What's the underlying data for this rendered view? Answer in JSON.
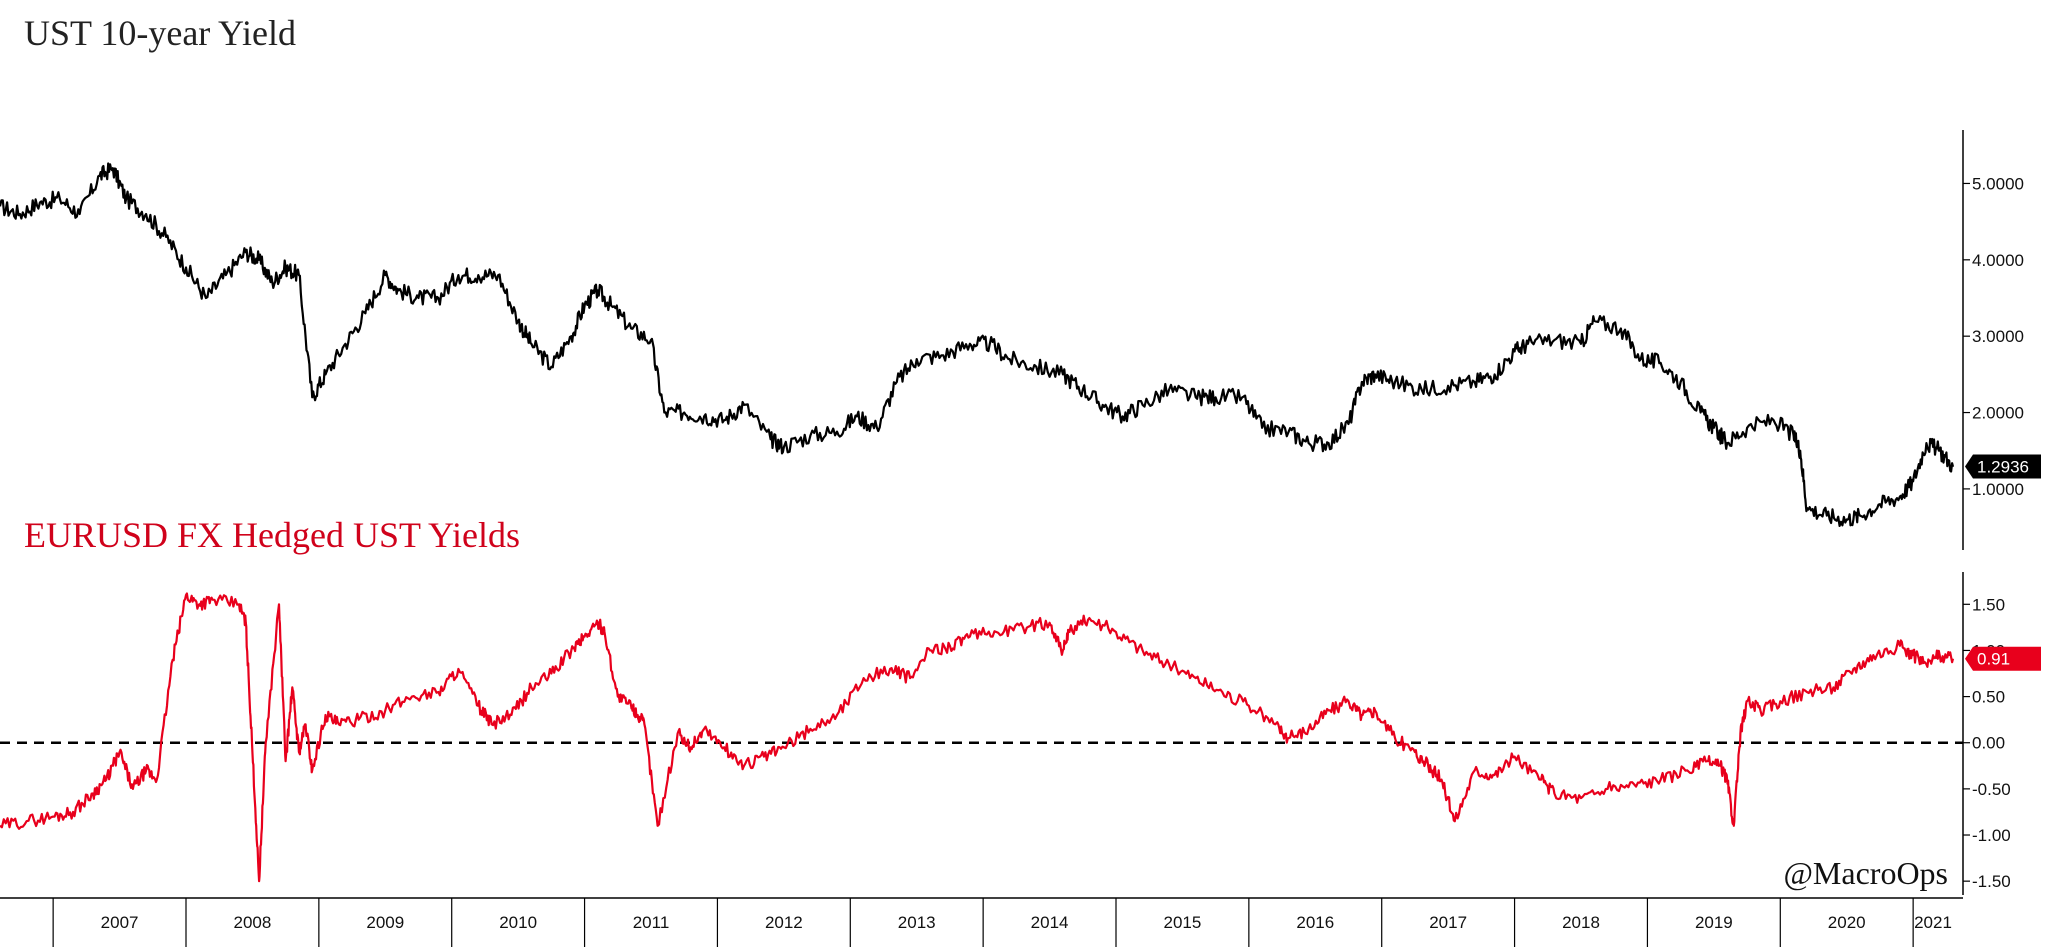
{
  "titles": {
    "top": "UST 10-year Yield",
    "bottom": "EURUSD FX Hedged UST Yields"
  },
  "watermark": "@MacroOps",
  "colors": {
    "top_line": "#000000",
    "bottom_line": "#e8001c",
    "zero_line": "#000000"
  },
  "chart_data": [
    {
      "type": "line",
      "title": "UST 10-year Yield",
      "x_unit": "year",
      "xlim": [
        2006.6,
        2021.3
      ],
      "ylim": [
        0.2,
        5.7
      ],
      "yticks": [
        "5.0000",
        "4.0000",
        "3.0000",
        "2.0000",
        "1.0000"
      ],
      "ytick_values": [
        5.0,
        4.0,
        3.0,
        2.0,
        1.0
      ],
      "last_value_label": "1.2936",
      "last_value": 1.2936,
      "series": [
        {
          "x": [
            2006.6,
            2006.75,
            2006.9,
            2007.05,
            2007.2,
            2007.35,
            2007.45,
            2007.55,
            2007.7,
            2007.85,
            2008.0,
            2008.15,
            2008.3,
            2008.45,
            2008.55,
            2008.65,
            2008.75,
            2008.85,
            2008.95,
            2009.05,
            2009.2,
            2009.35,
            2009.5,
            2009.6,
            2009.75,
            2009.9,
            2010.05,
            2010.2,
            2010.35,
            2010.5,
            2010.6,
            2010.75,
            2010.9,
            2011.0,
            2011.1,
            2011.2,
            2011.35,
            2011.5,
            2011.6,
            2011.75,
            2011.9,
            2012.05,
            2012.2,
            2012.4,
            2012.5,
            2012.7,
            2012.9,
            2013.05,
            2013.2,
            2013.35,
            2013.5,
            2013.7,
            2013.9,
            2014.05,
            2014.2,
            2014.4,
            2014.6,
            2014.75,
            2014.9,
            2015.05,
            2015.2,
            2015.4,
            2015.6,
            2015.75,
            2015.95,
            2016.1,
            2016.3,
            2016.45,
            2016.6,
            2016.75,
            2016.85,
            2016.95,
            2017.1,
            2017.3,
            2017.5,
            2017.7,
            2017.85,
            2018.0,
            2018.1,
            2018.3,
            2018.5,
            2018.6,
            2018.8,
            2018.95,
            2019.1,
            2019.25,
            2019.4,
            2019.5,
            2019.6,
            2019.75,
            2019.95,
            2020.1,
            2020.15,
            2020.2,
            2020.35,
            2020.5,
            2020.6,
            2020.75,
            2020.9,
            2021.0,
            2021.1,
            2021.2,
            2021.3
          ],
          "y": [
            4.7,
            4.6,
            4.75,
            4.8,
            4.6,
            5.1,
            5.2,
            4.8,
            4.6,
            4.3,
            3.9,
            3.5,
            3.8,
            4.1,
            4.0,
            3.7,
            3.9,
            3.8,
            2.2,
            2.5,
            2.9,
            3.3,
            3.8,
            3.6,
            3.5,
            3.5,
            3.8,
            3.8,
            3.8,
            3.2,
            2.9,
            2.6,
            3.0,
            3.4,
            3.6,
            3.4,
            3.1,
            2.95,
            2.0,
            2.0,
            1.95,
            1.9,
            2.1,
            1.65,
            1.55,
            1.7,
            1.75,
            1.95,
            1.8,
            2.4,
            2.7,
            2.75,
            2.9,
            2.9,
            2.7,
            2.6,
            2.5,
            2.3,
            2.1,
            1.95,
            2.1,
            2.3,
            2.2,
            2.2,
            2.2,
            1.8,
            1.75,
            1.6,
            1.6,
            1.85,
            2.4,
            2.5,
            2.4,
            2.3,
            2.35,
            2.4,
            2.5,
            2.8,
            2.9,
            2.95,
            2.9,
            3.2,
            3.1,
            2.7,
            2.65,
            2.4,
            2.0,
            1.8,
            1.6,
            1.8,
            1.9,
            1.7,
            1.5,
            0.75,
            0.65,
            0.6,
            0.65,
            0.8,
            0.9,
            1.1,
            1.6,
            1.5,
            1.29
          ]
        }
      ]
    },
    {
      "type": "line",
      "title": "EURUSD FX Hedged UST Yields",
      "x_unit": "year",
      "xlim": [
        2006.6,
        2021.3
      ],
      "ylim": [
        -1.65,
        1.85
      ],
      "xticks": [
        "2007",
        "2008",
        "2009",
        "2010",
        "2011",
        "2012",
        "2013",
        "2014",
        "2015",
        "2016",
        "2017",
        "2018",
        "2019",
        "2020",
        "2021"
      ],
      "yticks": [
        "1.50",
        "1.00",
        "0.50",
        "0.00",
        "-0.50",
        "-1.00",
        "-1.50"
      ],
      "ytick_values": [
        1.5,
        1.0,
        0.5,
        0.0,
        -0.5,
        -1.0,
        -1.5
      ],
      "reference_line": 0.0,
      "last_value_label": "0.91",
      "last_value": 0.91,
      "series": [
        {
          "x": [
            2006.6,
            2006.8,
            2007.0,
            2007.15,
            2007.3,
            2007.4,
            2007.5,
            2007.6,
            2007.7,
            2007.78,
            2007.9,
            2008.0,
            2008.1,
            2008.2,
            2008.4,
            2008.45,
            2008.5,
            2008.55,
            2008.6,
            2008.7,
            2008.75,
            2008.8,
            2008.85,
            2008.9,
            2008.95,
            2009.05,
            2009.15,
            2009.3,
            2009.5,
            2009.7,
            2009.9,
            2010.05,
            2010.2,
            2010.3,
            2010.45,
            2010.6,
            2010.75,
            2010.9,
            2011.0,
            2011.1,
            2011.15,
            2011.25,
            2011.35,
            2011.4,
            2011.45,
            2011.55,
            2011.7,
            2011.8,
            2011.9,
            2012.05,
            2012.2,
            2012.35,
            2012.5,
            2012.7,
            2012.9,
            2013.1,
            2013.3,
            2013.45,
            2013.6,
            2013.75,
            2013.9,
            2014.1,
            2014.3,
            2014.5,
            2014.6,
            2014.65,
            2014.8,
            2015.0,
            2015.2,
            2015.4,
            2015.6,
            2015.8,
            2016.0,
            2016.2,
            2016.3,
            2016.45,
            2016.6,
            2016.75,
            2016.85,
            2016.95,
            2017.1,
            2017.25,
            2017.35,
            2017.45,
            2017.55,
            2017.7,
            2017.85,
            2018.0,
            2018.2,
            2018.3,
            2018.5,
            2018.7,
            2018.9,
            2019.1,
            2019.3,
            2019.45,
            2019.55,
            2019.6,
            2019.65,
            2019.7,
            2019.75,
            2019.85,
            2020.0,
            2020.2,
            2020.4,
            2020.55,
            2020.7,
            2020.9,
            2021.0,
            2021.1,
            2021.2,
            2021.3
          ],
          "y": [
            -0.9,
            -0.85,
            -0.8,
            -0.75,
            -0.55,
            -0.4,
            -0.1,
            -0.5,
            -0.3,
            -0.4,
            0.9,
            1.6,
            1.5,
            1.55,
            1.5,
            1.3,
            -0.1,
            -1.5,
            0.0,
            1.5,
            -0.2,
            0.6,
            -0.1,
            0.2,
            -0.3,
            0.3,
            0.2,
            0.25,
            0.35,
            0.5,
            0.55,
            0.8,
            0.4,
            0.2,
            0.3,
            0.6,
            0.75,
            1.0,
            1.15,
            1.3,
            1.2,
            0.5,
            0.4,
            0.3,
            0.2,
            -0.9,
            0.1,
            -0.05,
            0.15,
            -0.05,
            -0.25,
            -0.15,
            -0.05,
            0.15,
            0.3,
            0.7,
            0.8,
            0.7,
            1.0,
            1.05,
            1.15,
            1.2,
            1.25,
            1.3,
            1.0,
            1.2,
            1.35,
            1.2,
            1.0,
            0.85,
            0.7,
            0.55,
            0.4,
            0.2,
            0.05,
            0.15,
            0.35,
            0.45,
            0.3,
            0.35,
            0.05,
            -0.1,
            -0.25,
            -0.4,
            -0.85,
            -0.3,
            -0.35,
            -0.15,
            -0.4,
            -0.55,
            -0.6,
            -0.5,
            -0.45,
            -0.4,
            -0.3,
            -0.2,
            -0.25,
            -0.4,
            -0.9,
            0.1,
            0.45,
            0.35,
            0.45,
            0.55,
            0.6,
            0.8,
            0.95,
            1.05,
            0.95,
            0.85,
            0.95,
            0.91
          ]
        }
      ]
    }
  ]
}
